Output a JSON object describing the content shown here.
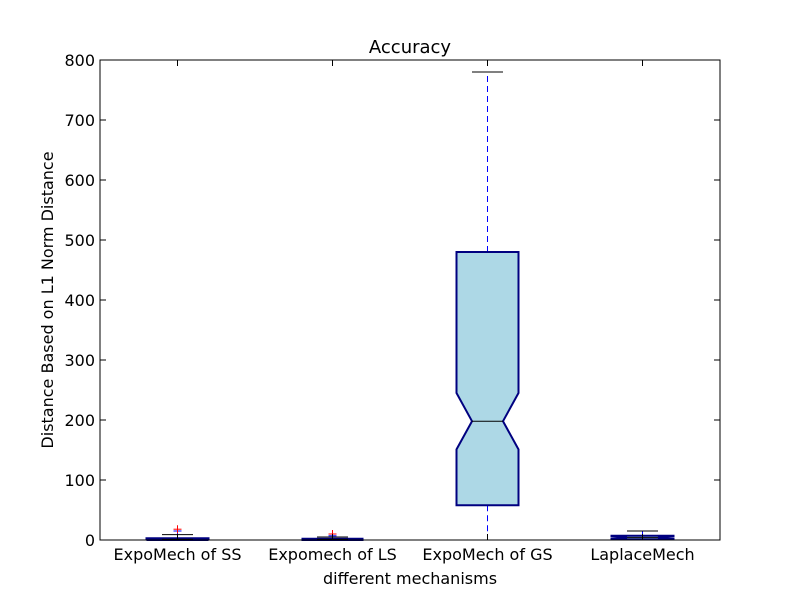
{
  "chart_data": {
    "type": "boxplot",
    "title": "Accuracy",
    "xlabel": "different mechanisms",
    "ylabel": "Distance Based on L1 Norm Distance",
    "ylim": [
      0,
      800
    ],
    "yticks": [
      0,
      100,
      200,
      300,
      400,
      500,
      600,
      700,
      800
    ],
    "grid": false,
    "notched": true,
    "categories": [
      "ExpoMech of SS",
      "Expomech of LS",
      "ExpoMech of GS",
      "LaplaceMech"
    ],
    "boxes": [
      {
        "q1": 0,
        "median": 1,
        "q3": 3,
        "notch_low": 0,
        "notch_high": 2,
        "whisker_low": 0,
        "whisker_high": 9,
        "outliers": [
          15,
          18
        ]
      },
      {
        "q1": 0,
        "median": 1,
        "q3": 2,
        "notch_low": 0,
        "notch_high": 2,
        "whisker_low": 0,
        "whisker_high": 5,
        "outliers": [
          7,
          10
        ]
      },
      {
        "q1": 58,
        "median": 198,
        "q3": 480,
        "notch_low": 151,
        "notch_high": 245,
        "whisker_low": 0,
        "whisker_high": 780,
        "outliers": []
      },
      {
        "q1": 1,
        "median": 4,
        "q3": 7,
        "notch_low": 2,
        "notch_high": 6,
        "whisker_low": 0,
        "whisker_high": 15,
        "outliers": []
      }
    ],
    "colors": {
      "box_fill": "#add8e6",
      "box_edge": "#000080",
      "whisker": "#0000ff",
      "median": "#000000",
      "cap": "#000000",
      "outlier_default": "#0000ff",
      "outlier_second": "#ff0000"
    }
  }
}
